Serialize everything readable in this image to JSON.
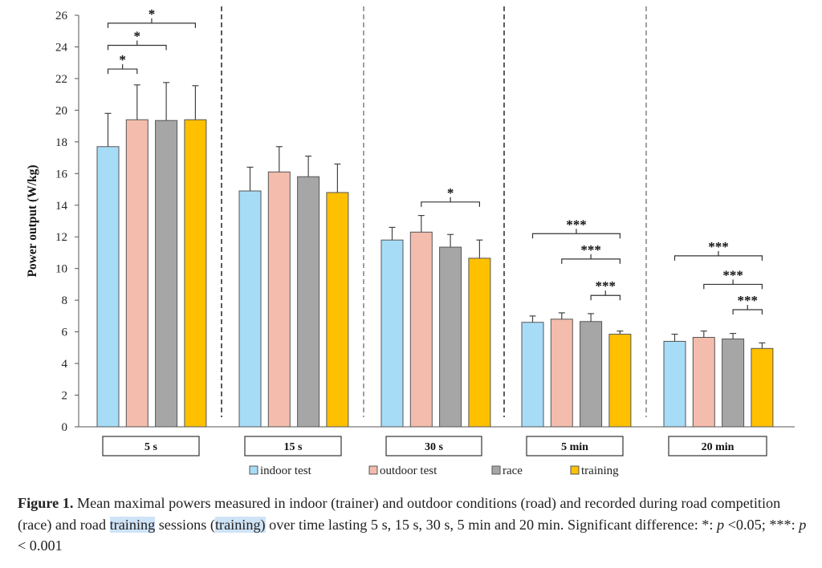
{
  "chart_data": {
    "type": "bar",
    "title": "",
    "xlabel": "",
    "ylabel": "Power output (W/kg)",
    "ylim": [
      0,
      26
    ],
    "yticks": [
      0,
      2,
      4,
      6,
      8,
      10,
      12,
      14,
      16,
      18,
      20,
      22,
      24,
      26
    ],
    "grid": false,
    "legend_position": "bottom",
    "categories": [
      "5 s",
      "15 s",
      "30 s",
      "5 min",
      "20 min"
    ],
    "series": [
      {
        "name": "indoor test",
        "color": "#a7dcf7",
        "values": [
          17.7,
          14.9,
          11.8,
          6.6,
          5.4
        ],
        "errors": [
          2.1,
          1.5,
          0.8,
          0.4,
          0.45
        ]
      },
      {
        "name": "outdoor test",
        "color": "#f4bcac",
        "values": [
          19.4,
          16.1,
          12.3,
          6.8,
          5.65
        ],
        "errors": [
          2.2,
          1.6,
          1.05,
          0.4,
          0.4
        ]
      },
      {
        "name": "race",
        "color": "#a6a6a6",
        "values": [
          19.35,
          15.8,
          11.35,
          6.65,
          5.55
        ],
        "errors": [
          2.4,
          1.3,
          0.8,
          0.5,
          0.35
        ]
      },
      {
        "name": "training",
        "color": "#ffc000",
        "values": [
          19.4,
          14.8,
          10.65,
          5.85,
          4.95
        ],
        "errors": [
          2.15,
          1.8,
          1.15,
          0.2,
          0.35
        ]
      }
    ],
    "significance": [
      {
        "group": 0,
        "from": 0,
        "to": 1,
        "label": "*",
        "y": 22.6
      },
      {
        "group": 0,
        "from": 0,
        "to": 2,
        "label": "*",
        "y": 24.1
      },
      {
        "group": 0,
        "from": 0,
        "to": 3,
        "label": "*",
        "y": 25.5
      },
      {
        "group": 2,
        "from": 1,
        "to": 3,
        "label": "*",
        "y": 14.2
      },
      {
        "group": 3,
        "from": 0,
        "to": 3,
        "label": "***",
        "y": 12.2
      },
      {
        "group": 3,
        "from": 1,
        "to": 3,
        "label": "***",
        "y": 10.6
      },
      {
        "group": 3,
        "from": 2,
        "to": 3,
        "label": "***",
        "y": 8.3
      },
      {
        "group": 4,
        "from": 0,
        "to": 3,
        "label": "***",
        "y": 10.8
      },
      {
        "group": 4,
        "from": 1,
        "to": 3,
        "label": "***",
        "y": 9.0
      },
      {
        "group": 4,
        "from": 2,
        "to": 3,
        "label": "***",
        "y": 7.4
      }
    ]
  },
  "caption": {
    "label": "Figure 1.",
    "text1": " Mean maximal powers measured in indoor (trainer) and outdoor conditions (road) and recorded during road competition (race) and road ",
    "hl1": "training",
    "text2": " sessions (",
    "hl2": "training)",
    "text3": " over time lasting 5 s, 15 s, 30 s, 5 min and 20 min. Significant difference: *: ",
    "p1": "p",
    "text4": " <0.05; ***: ",
    "p2": "p",
    "text5": " < 0.001"
  }
}
